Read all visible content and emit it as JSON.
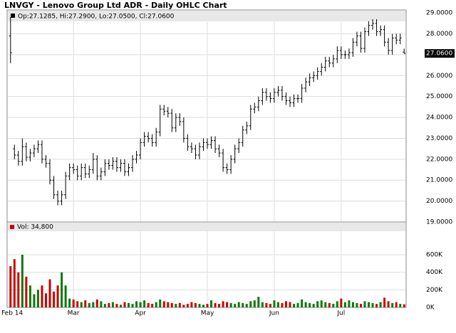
{
  "chart_data": {
    "type": "ohlc",
    "title": "LNVGY - Lenovo Group Ltd ADR - Daily OHLC Chart",
    "legend_text": "Op:27.1285, Hi:27.2900, Lo:27.0500, Cl:27.0600",
    "categories": [
      "Feb 14",
      null,
      null,
      null,
      null,
      null,
      null,
      null,
      null,
      null,
      null,
      null,
      null,
      null,
      null,
      null,
      "Mar",
      null,
      null,
      null,
      null,
      null,
      null,
      null,
      null,
      null,
      null,
      null,
      null,
      null,
      null,
      null,
      null,
      "Apr",
      null,
      null,
      null,
      null,
      null,
      null,
      null,
      null,
      null,
      null,
      null,
      null,
      null,
      null,
      null,
      null,
      "May",
      null,
      null,
      null,
      null,
      null,
      null,
      null,
      null,
      null,
      null,
      null,
      null,
      null,
      null,
      null,
      null,
      "Jun",
      null,
      null,
      null,
      null,
      null,
      null,
      null,
      null,
      null,
      null,
      null,
      null,
      null,
      null,
      null,
      null,
      "Jul",
      null,
      null,
      null,
      null,
      null,
      null,
      null,
      null,
      null,
      null,
      null,
      null,
      null,
      null,
      null,
      null
    ],
    "open": [
      27.9,
      22.5,
      22.2,
      21.9,
      22.6,
      22.1,
      22.3,
      22.5,
      22.7,
      22.0,
      21.8,
      21.0,
      20.3,
      20.0,
      20.3,
      21.2,
      21.6,
      21.5,
      21.2,
      21.6,
      21.3,
      21.5,
      22.0,
      21.2,
      21.4,
      21.8,
      21.7,
      21.9,
      21.6,
      21.8,
      21.4,
      21.6,
      22.0,
      22.2,
      22.8,
      23.1,
      23.0,
      22.8,
      23.3,
      24.4,
      24.3,
      24.2,
      23.5,
      24.0,
      23.8,
      23.0,
      22.6,
      22.5,
      22.2,
      22.6,
      22.8,
      22.7,
      22.9,
      22.5,
      22.3,
      21.6,
      21.5,
      22.0,
      22.5,
      22.8,
      23.4,
      23.6,
      24.4,
      24.5,
      24.8,
      25.2,
      25.0,
      24.9,
      25.2,
      25.3,
      25.0,
      24.8,
      24.7,
      24.9,
      24.9,
      25.4,
      25.7,
      25.9,
      26.0,
      26.2,
      26.4,
      26.7,
      26.6,
      26.8,
      27.2,
      27.0,
      27.0,
      27.1,
      27.6,
      27.9,
      27.3,
      28.1,
      28.4,
      28.5,
      28.1,
      28.2,
      27.6,
      27.2,
      27.8,
      27.7,
      27.1285
    ],
    "high": [
      28.8,
      22.7,
      22.4,
      23.0,
      22.8,
      22.5,
      22.7,
      22.9,
      22.9,
      22.2,
      22.0,
      21.2,
      20.5,
      20.5,
      21.4,
      21.8,
      21.8,
      21.7,
      21.8,
      21.8,
      21.7,
      22.3,
      22.2,
      21.6,
      22.0,
      22.0,
      22.1,
      22.1,
      22.0,
      22.0,
      21.8,
      22.2,
      22.4,
      23.0,
      23.3,
      23.3,
      23.2,
      23.5,
      24.6,
      24.6,
      24.5,
      24.4,
      24.2,
      24.2,
      24.0,
      23.2,
      22.8,
      22.7,
      22.8,
      23.0,
      23.0,
      23.1,
      23.1,
      22.7,
      22.5,
      21.8,
      22.2,
      22.7,
      23.0,
      23.6,
      23.8,
      24.6,
      24.7,
      25.0,
      25.4,
      25.4,
      25.2,
      25.4,
      25.5,
      25.5,
      25.2,
      25.0,
      25.1,
      25.1,
      25.6,
      25.9,
      26.1,
      26.2,
      26.4,
      26.6,
      26.9,
      26.9,
      27.0,
      27.4,
      27.4,
      27.2,
      27.3,
      27.8,
      28.1,
      28.1,
      28.3,
      28.6,
      28.7,
      28.7,
      28.4,
      28.4,
      27.8,
      28.0,
      28.0,
      28.0,
      27.29
    ],
    "low": [
      26.6,
      22.0,
      21.7,
      21.7,
      21.9,
      21.9,
      22.1,
      22.3,
      21.8,
      21.6,
      20.8,
      20.1,
      19.8,
      19.8,
      20.1,
      21.0,
      21.3,
      21.0,
      21.0,
      21.1,
      21.1,
      21.3,
      21.0,
      21.0,
      21.2,
      21.5,
      21.5,
      21.4,
      21.4,
      21.2,
      21.2,
      21.4,
      21.8,
      22.0,
      22.6,
      22.8,
      22.6,
      22.6,
      23.1,
      24.1,
      24.0,
      23.3,
      23.3,
      23.6,
      22.8,
      22.4,
      22.3,
      22.0,
      22.0,
      22.4,
      22.5,
      22.5,
      22.3,
      22.1,
      21.4,
      21.3,
      21.3,
      21.8,
      22.3,
      22.6,
      23.2,
      23.4,
      24.2,
      24.3,
      24.6,
      24.8,
      24.7,
      24.7,
      25.0,
      24.8,
      24.6,
      24.5,
      24.5,
      24.7,
      24.7,
      25.2,
      25.5,
      25.7,
      25.8,
      26.0,
      26.2,
      26.4,
      26.4,
      26.6,
      26.8,
      26.8,
      26.8,
      26.9,
      27.4,
      27.1,
      27.1,
      27.9,
      28.2,
      27.9,
      27.9,
      27.4,
      27.0,
      27.0,
      27.5,
      27.5,
      27.05
    ],
    "close": [
      27.1,
      22.2,
      21.9,
      22.6,
      22.1,
      22.3,
      22.5,
      22.7,
      22.0,
      21.8,
      21.0,
      20.3,
      20.0,
      20.3,
      21.2,
      21.6,
      21.5,
      21.2,
      21.6,
      21.3,
      21.5,
      22.0,
      21.2,
      21.4,
      21.8,
      21.7,
      21.9,
      21.6,
      21.8,
      21.4,
      21.6,
      22.0,
      22.2,
      22.8,
      23.1,
      23.0,
      22.8,
      23.3,
      24.4,
      24.3,
      24.2,
      23.5,
      24.0,
      23.8,
      23.0,
      22.6,
      22.5,
      22.2,
      22.6,
      22.8,
      22.7,
      22.9,
      22.5,
      22.3,
      21.6,
      21.5,
      22.0,
      22.5,
      22.8,
      23.4,
      23.6,
      24.4,
      24.5,
      24.8,
      25.2,
      25.0,
      24.9,
      25.2,
      25.3,
      25.0,
      24.8,
      24.7,
      24.9,
      24.9,
      25.4,
      25.7,
      25.9,
      26.0,
      26.2,
      26.4,
      26.7,
      26.6,
      26.8,
      27.2,
      27.0,
      27.0,
      27.1,
      27.6,
      27.9,
      27.3,
      28.1,
      28.4,
      28.5,
      28.1,
      28.2,
      27.6,
      27.2,
      27.8,
      27.7,
      27.8,
      27.06
    ],
    "bar_color": "#000000",
    "ylim": [
      19,
      29.14
    ],
    "yticks": [
      {
        "value": 19,
        "label": "19.0000"
      },
      {
        "value": 20,
        "label": "20.0000"
      },
      {
        "value": 21,
        "label": "21.0000"
      },
      {
        "value": 22,
        "label": "22.0000"
      },
      {
        "value": 23,
        "label": "23.0000"
      },
      {
        "value": 24,
        "label": "24.0000"
      },
      {
        "value": 25,
        "label": "25.0000"
      },
      {
        "value": 26,
        "label": "26.0000"
      },
      {
        "value": 27,
        "label": "27.0000"
      },
      {
        "value": 28,
        "label": "28.0000"
      },
      {
        "value": 29,
        "label": "29.0000"
      }
    ],
    "last_price": {
      "value": 27.06,
      "label": "27.0600"
    },
    "grid": true,
    "volume": {
      "label": "Vol: 34,800",
      "up_color": "#0a7a0a",
      "down_color": "#cc0000",
      "values": [
        470000,
        550000,
        400000,
        600000,
        350000,
        250000,
        150000,
        200000,
        250000,
        160000,
        320000,
        180000,
        250000,
        400000,
        250000,
        100000,
        90000,
        70000,
        60000,
        80000,
        50000,
        60000,
        90000,
        70000,
        40000,
        50000,
        60000,
        40000,
        30000,
        60000,
        50000,
        40000,
        70000,
        60000,
        80000,
        50000,
        40000,
        60000,
        90000,
        70000,
        60000,
        50000,
        40000,
        50000,
        30000,
        40000,
        60000,
        50000,
        40000,
        30000,
        40000,
        80000,
        50000,
        40000,
        70000,
        60000,
        50000,
        40000,
        60000,
        50000,
        40000,
        70000,
        80000,
        120000,
        60000,
        50000,
        40000,
        80000,
        60000,
        50000,
        70000,
        60000,
        40000,
        50000,
        90000,
        60000,
        50000,
        40000,
        70000,
        80000,
        60000,
        50000,
        40000,
        70000,
        100000,
        60000,
        80000,
        60000,
        50000,
        40000,
        70000,
        60000,
        50000,
        40000,
        60000,
        110000,
        70000,
        50000,
        60000,
        40000,
        34800
      ],
      "ylim": [
        0,
        876000
      ],
      "yticks": [
        {
          "value": 0,
          "label": "0K"
        },
        {
          "value": 200000,
          "label": "200K"
        },
        {
          "value": 400000,
          "label": "400K"
        },
        {
          "value": 600000,
          "label": "600K"
        }
      ]
    }
  }
}
